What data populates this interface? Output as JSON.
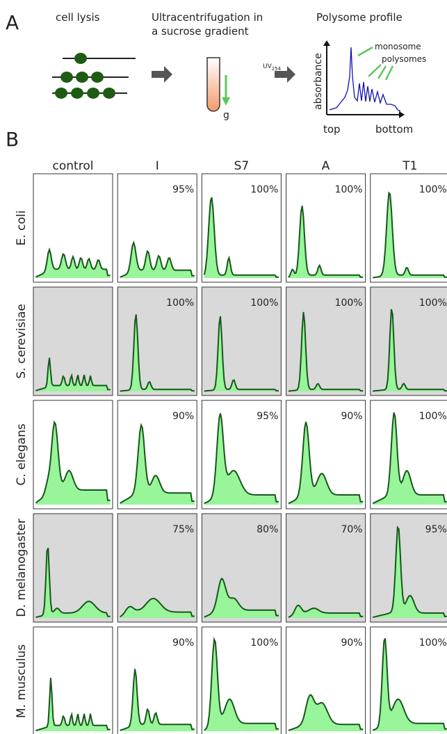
{
  "panel_a": {
    "label": "A",
    "step_1": "cell lysis",
    "step_2": [
      "Ultracentrifugation in",
      "a sucrose gradient"
    ],
    "step_3": "Polysome profile",
    "uv": "UV",
    "uv_sub": "254",
    "gravity": "g",
    "y_axis": "absorbance",
    "monosome": "monosome",
    "polysomes": "polysomes",
    "top": "top",
    "bottom": "bottom"
  },
  "panel_b": {
    "label": "B",
    "columns": [
      "control",
      "I",
      "S7",
      "A",
      "T1"
    ],
    "rows": [
      {
        "organism": "E. coli",
        "percents": [
          "95%",
          "100%",
          "100%",
          "100%"
        ]
      },
      {
        "organism": "S. cerevisiae",
        "percents": [
          "100%",
          "100%",
          "100%",
          "100%"
        ]
      },
      {
        "organism": "C. elegans",
        "percents": [
          "90%",
          "95%",
          "90%",
          "100%"
        ]
      },
      {
        "organism": "D. melanogaster",
        "percents": [
          "75%",
          "80%",
          "70%",
          "95%"
        ]
      },
      {
        "organism": "M. musculus",
        "percents": [
          "90%",
          "100%",
          "90%",
          "100%"
        ]
      }
    ]
  }
}
